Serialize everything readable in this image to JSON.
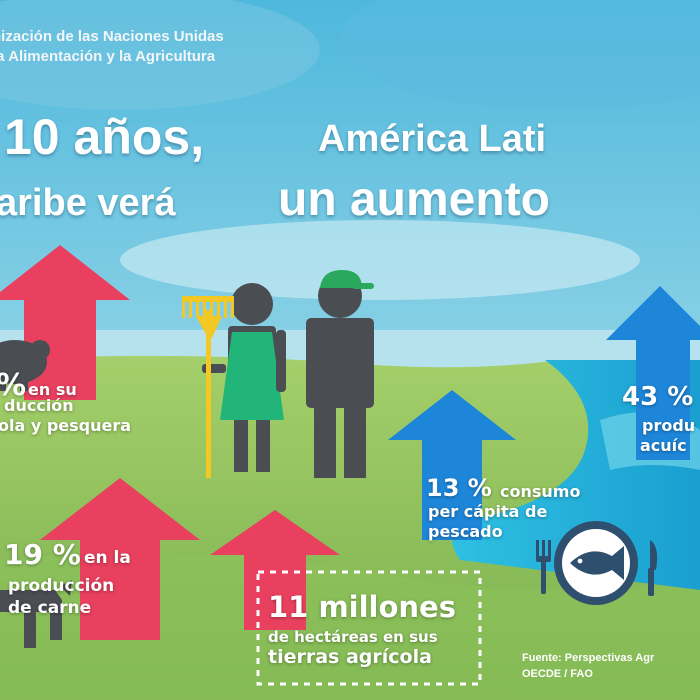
{
  "header": {
    "org_line1": "nización de las Naciones Unidas",
    "org_line2": "la Alimentación y la Agricultura"
  },
  "headline": {
    "line1_a": "10 años,",
    "line1_b": "América Lati",
    "line2_a": "aribe verá",
    "line2_b": "un aumento"
  },
  "stats": {
    "fish_prod": {
      "value": "%",
      "desc1": "en su",
      "desc2": "ducción",
      "desc3": "ola y pesquera"
    },
    "meat": {
      "value": "19 %",
      "desc1": "en la",
      "desc2": "producción",
      "desc3": "de carne"
    },
    "land": {
      "value": "11 millones",
      "desc1": "de hectáreas en sus",
      "desc2": "tierras agrícola"
    },
    "fish_cons": {
      "value": "13 %",
      "desc1": "consumo",
      "desc2": "per cápita de",
      "desc3": "pescado"
    },
    "aqua": {
      "value": "43 %",
      "desc1": "produ",
      "desc2": "acuíc"
    }
  },
  "source": {
    "line1": "Fuente: Perspectivas Agr",
    "line2": "OECDE / FAO"
  },
  "colors": {
    "sky": "#6ec7e0",
    "grass": "#8ec05a",
    "arrow_red": "#e8405e",
    "arrow_blue": "#1e86d9",
    "water": "#1fb4dc",
    "figure_gray": "#4a4d52",
    "dress_green": "#22b57a",
    "cap_green": "#2aa85e",
    "rake_yellow": "#f3c824",
    "fish_plate": "#2f4f6e"
  },
  "icons": [
    "rake-icon",
    "cap-icon",
    "fish-icon",
    "fork-icon",
    "knife-icon",
    "pig-icon",
    "cow-icon"
  ]
}
